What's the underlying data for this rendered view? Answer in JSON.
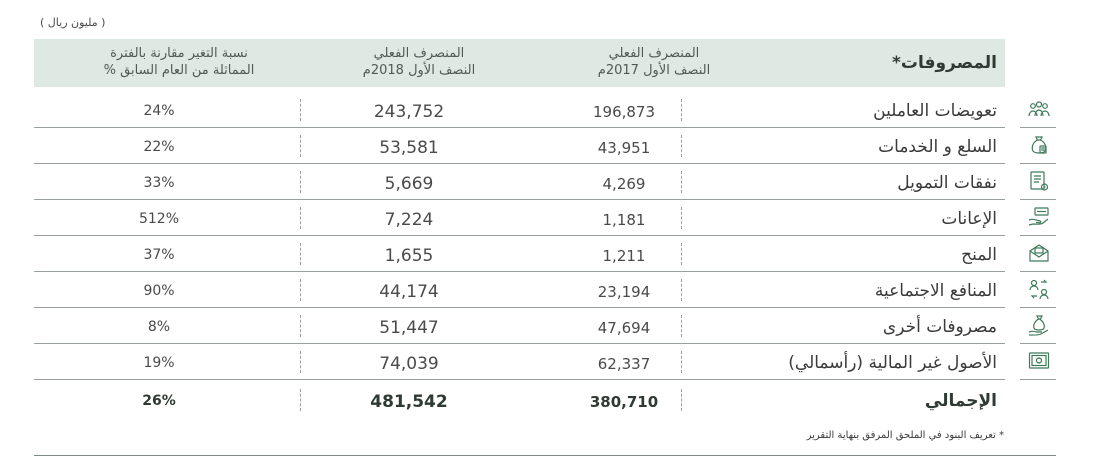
{
  "unit_note": "( مليون ريال )",
  "header": {
    "title": "المصروفات*",
    "col_2017_line1": "المنصرف الفعلي",
    "col_2017_line2": "النصف الأول 2017م",
    "col_2018_line1": "المنصرف الفعلي",
    "col_2018_line2": "النصف الأول 2018م",
    "col_pct_line1": "نسبة التغير مقارنة بالفترة",
    "col_pct_line2": "المماثلة من العام السابق %"
  },
  "rows": [
    {
      "label": "تعويضات العاملين",
      "v2017": "196,873",
      "v2018": "243,752",
      "pct": "24%",
      "icon": "employees-icon"
    },
    {
      "label": "السلع و الخدمات",
      "v2017": "43,951",
      "v2018": "53,581",
      "pct": "22%",
      "icon": "goods-services-icon"
    },
    {
      "label": "نفقات التمويل",
      "v2017": "4,269",
      "v2018": "5,669",
      "pct": "33%",
      "icon": "financing-document-icon"
    },
    {
      "label": "الإعانات",
      "v2017": "1,181",
      "v2018": "7,224",
      "pct": "512%",
      "icon": "subsidies-hand-icon"
    },
    {
      "label": "المنح",
      "v2017": "1,211",
      "v2018": "1,655",
      "pct": "37%",
      "icon": "grants-envelope-icon"
    },
    {
      "label": "المنافع الاجتماعية",
      "v2017": "23,194",
      "v2018": "44,174",
      "pct": "90%",
      "icon": "social-benefits-icon"
    },
    {
      "label": "مصروفات أخرى",
      "v2017": "47,694",
      "v2018": "51,447",
      "pct": "8%",
      "icon": "money-bag-icon"
    },
    {
      "label": "الأصول غير المالية (رأسمالي)",
      "v2017": "62,337",
      "v2018": "74,039",
      "pct": "19%",
      "icon": "safe-icon"
    }
  ],
  "total": {
    "label": "الإجمالي",
    "v2017": "380,710",
    "v2018": "481,542",
    "pct": "26%"
  },
  "footnote": "* تعريف البنود في الملحق المرفق بنهاية التقرير",
  "colors": {
    "header_bg": "#dde9e2",
    "icon_green": "#3f7a5a",
    "rule": "#9aa09c"
  }
}
